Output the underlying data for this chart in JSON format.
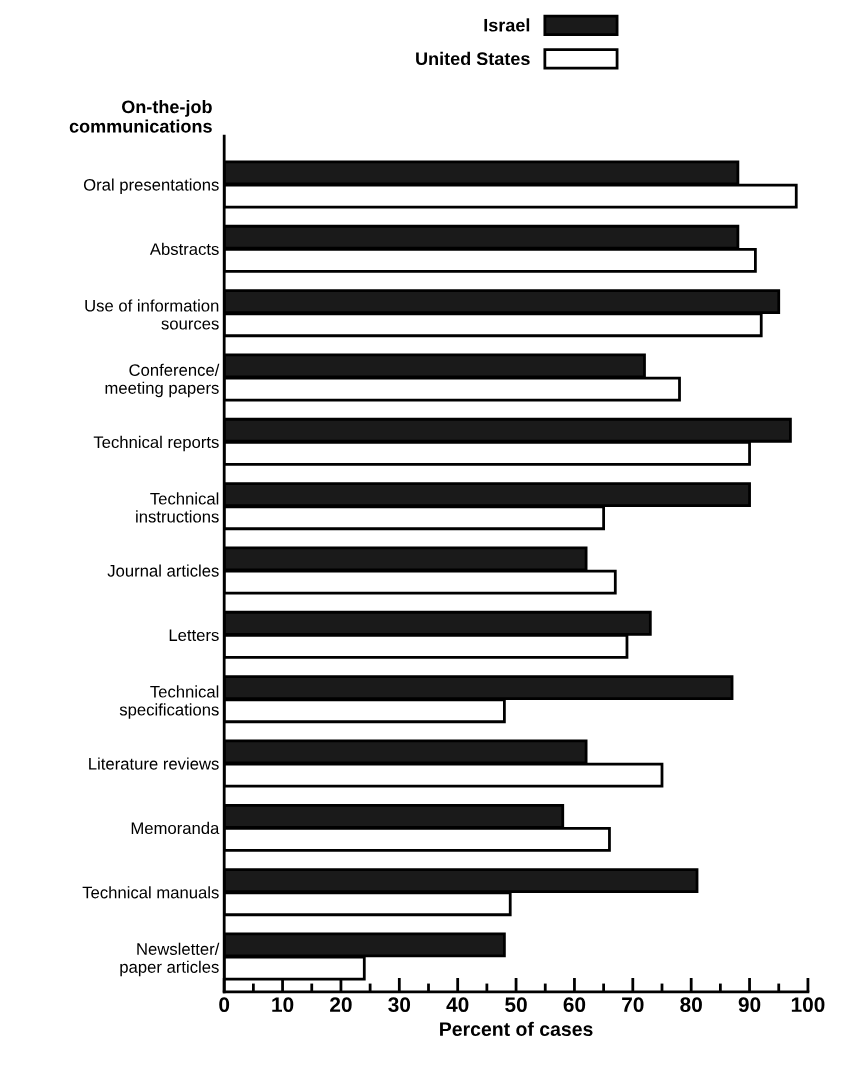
{
  "chart_data": {
    "type": "bar",
    "orientation": "horizontal",
    "ylabel": "On-the-job\ncommunications",
    "xlabel": "Percent of cases",
    "categories": [
      "Oral presentations",
      "Abstracts",
      "Use of information\nsources",
      "Conference/\nmeeting papers",
      "Technical reports",
      "Technical\ninstructions",
      "Journal articles",
      "Letters",
      "Technical\nspecifications",
      "Literature reviews",
      "Memoranda",
      "Technical manuals",
      "Newsletter/\npaper articles"
    ],
    "series": [
      {
        "name": "Israel",
        "color": "#1a1a1a",
        "values": [
          88,
          88,
          95,
          72,
          97,
          90,
          62,
          73,
          87,
          62,
          58,
          81,
          48
        ]
      },
      {
        "name": "United States",
        "color": "#ffffff",
        "values": [
          98,
          91,
          92,
          78,
          90,
          65,
          67,
          69,
          48,
          75,
          66,
          49,
          24
        ]
      }
    ],
    "xlim": [
      0,
      100
    ],
    "xticks": [
      0,
      {
        "value": 5,
        "label": null
      },
      10,
      {
        "value": 15,
        "label": null
      },
      20,
      {
        "value": 25,
        "label": null
      },
      30,
      {
        "value": 35,
        "label": null
      },
      40,
      {
        "value": 45,
        "label": null
      },
      50,
      {
        "value": 55,
        "label": null
      },
      60,
      {
        "value": 65,
        "label": null
      },
      70,
      {
        "value": 75,
        "label": null
      },
      80,
      {
        "value": 85,
        "label": null
      },
      90,
      {
        "value": 95,
        "label": null
      },
      100
    ],
    "legend": "top",
    "grid": false
  }
}
